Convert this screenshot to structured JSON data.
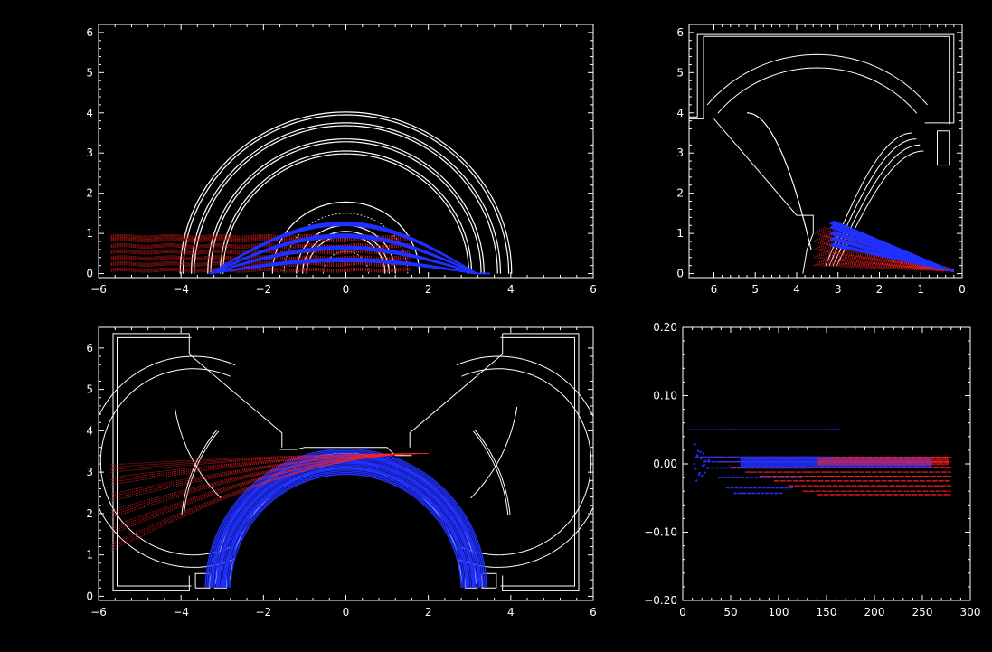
{
  "colors": {
    "background": "#000000",
    "frame": "#ffffff",
    "geometry": "#ffffff",
    "red": "#ff2020",
    "blue": "#2030ff"
  },
  "chart_data": [
    {
      "id": "top-left",
      "type": "line",
      "title": "",
      "xlabel": "",
      "ylabel": "",
      "xlim": [
        -6,
        6
      ],
      "ylim": [
        -0.1,
        6.2
      ],
      "xticks": [
        -6,
        -4,
        -2,
        0,
        2,
        4,
        6
      ],
      "yticks": [
        0,
        1,
        2,
        3,
        4,
        5,
        6
      ],
      "xtick_labels": [
        "−6",
        "−4",
        "−2",
        "0",
        "2",
        "4",
        "6"
      ],
      "ytick_labels": [
        "0",
        "1",
        "2",
        "3",
        "4",
        "5",
        "6"
      ],
      "outline": {
        "arcs": [
          {
            "cx": 0,
            "cy": 0,
            "r": 4.02
          },
          {
            "cx": 0,
            "cy": 0,
            "r": 3.95
          },
          {
            "cx": 0,
            "cy": 0,
            "r": 3.75
          },
          {
            "cx": 0,
            "cy": 0,
            "r": 3.68
          },
          {
            "cx": 0,
            "cy": 0,
            "r": 3.35
          },
          {
            "cx": 0,
            "cy": 0,
            "r": 3.28
          },
          {
            "cx": 0,
            "cy": 0,
            "r": 3.05
          },
          {
            "cx": 0,
            "cy": 0,
            "r": 2.98
          },
          {
            "cx": 0,
            "cy": 0,
            "r": 1.78
          },
          {
            "cx": 0,
            "cy": 0,
            "r": 1.2
          },
          {
            "cx": 0,
            "cy": 0,
            "r": 1.05
          },
          {
            "cx": 0,
            "cy": 0,
            "r": 0.95
          }
        ]
      },
      "series": [
        {
          "color": "red",
          "x_start": -5.7,
          "x_end": 1.6,
          "y_values": [
            0.05,
            0.2,
            0.35,
            0.5,
            0.65,
            0.8,
            0.88
          ]
        },
        {
          "color": "blue",
          "x_start": -3.3,
          "x_end": 3.5,
          "y_values": [
            0.3,
            0.6,
            0.9,
            1.2
          ]
        }
      ]
    },
    {
      "id": "top-right",
      "type": "line",
      "title": "",
      "xlabel": "",
      "ylabel": "",
      "xlim": [
        6.6,
        0
      ],
      "ylim": [
        -0.1,
        6.2
      ],
      "xticks": [
        6,
        5,
        4,
        3,
        2,
        1,
        0
      ],
      "yticks": [
        0,
        1,
        2,
        3,
        4,
        5,
        6
      ],
      "xtick_labels": [
        "6",
        "5",
        "4",
        "3",
        "2",
        "1",
        "0"
      ],
      "ytick_labels": [
        "0",
        "1",
        "2",
        "3",
        "4",
        "5",
        "6"
      ],
      "series": [
        {
          "color": "red",
          "x_start": 3.6,
          "x_end": 0.2,
          "y_values": [
            1.0,
            0.8,
            0.6,
            0.4,
            0.2
          ]
        },
        {
          "color": "blue",
          "x_start": 3.2,
          "x_end": 0.2,
          "y_values": [
            1.25,
            1.15,
            1.0,
            0.85,
            0.7
          ]
        }
      ]
    },
    {
      "id": "bottom-left",
      "type": "line",
      "title": "",
      "xlabel": "",
      "ylabel": "",
      "xlim": [
        -6,
        6
      ],
      "ylim": [
        -0.1,
        6.5
      ],
      "xticks": [
        -6,
        -4,
        -2,
        0,
        2,
        4,
        6
      ],
      "yticks": [
        0,
        1,
        2,
        3,
        4,
        5,
        6
      ],
      "xtick_labels": [
        "−6",
        "−4",
        "−2",
        "0",
        "2",
        "4",
        "6"
      ],
      "ytick_labels": [
        "0",
        "1",
        "2",
        "3",
        "4",
        "5",
        "6"
      ],
      "series": [
        {
          "color": "red",
          "x_start": -5.7,
          "x_end": 2.0,
          "y_start_values": [
            1.1,
            1.5,
            1.9,
            2.3,
            2.7,
            3.0
          ],
          "y_end": 3.45
        },
        {
          "color": "blue",
          "ring_radii": [
            3.1,
            3.25,
            3.4,
            3.55
          ],
          "x_range": [
            -3.4,
            3.4
          ]
        }
      ]
    },
    {
      "id": "bottom-right",
      "type": "scatter",
      "title": "",
      "xlabel": "",
      "ylabel": "",
      "xlim": [
        0,
        300
      ],
      "ylim": [
        -0.2,
        0.2
      ],
      "xticks": [
        0,
        50,
        100,
        150,
        200,
        250,
        300
      ],
      "yticks": [
        -0.2,
        -0.1,
        0.0,
        0.1,
        0.2
      ],
      "xtick_labels": [
        "0",
        "50",
        "100",
        "150",
        "200",
        "250",
        "300"
      ],
      "ytick_labels": [
        "−0.20",
        "−0.10",
        "0.00",
        "0.10",
        "0.20"
      ],
      "series": [
        {
          "color": "red",
          "x_range": [
            20,
            280
          ],
          "y_levels": [
            0.01,
            0.003,
            -0.005,
            -0.012,
            -0.018,
            -0.025,
            -0.032,
            -0.04,
            -0.045
          ]
        },
        {
          "color": "blue",
          "x_range": [
            5,
            165
          ],
          "y_levels": [
            0.05,
            0.01,
            0.003,
            -0.006,
            -0.02,
            -0.035,
            -0.043
          ]
        }
      ]
    }
  ]
}
